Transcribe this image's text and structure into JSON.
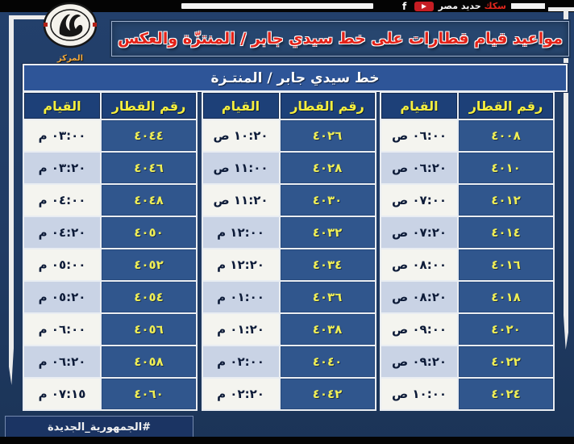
{
  "topbar": {
    "brand_red": "سكك",
    "brand_white": "حديد مصر",
    "icons": [
      "facebook-icon",
      "youtube-icon"
    ]
  },
  "logo": {
    "label": "المركز الإعلامي"
  },
  "title": "مواعيد قيام قطارات على خط سيدي جابر / المنتزّة والعكس",
  "subtitle": "خط سيدي جابر / المنتـزة",
  "hashtag": "#الجمهورية_الجديدة",
  "colors": {
    "page_bg": "#203b64",
    "strip": "#040404",
    "title_red": "#e42117",
    "subtitle_blue": "#2e5598",
    "header_blue": "#1d4078",
    "train_cell_blue": "#30568d",
    "yellow_text": "#f5ee3e",
    "row_light": "#f4f4ef",
    "row_alt": "#c9d3e5",
    "youtube_red": "#c61d23"
  },
  "table": {
    "col_train": "رقم القطار",
    "col_dep": "القيام",
    "groups": [
      {
        "rows": [
          {
            "train": "٤٠٠٨",
            "dep": "٠٦:٠٠ ص"
          },
          {
            "train": "٤٠١٠",
            "dep": "٠٦:٢٠ ص"
          },
          {
            "train": "٤٠١٢",
            "dep": "٠٧:٠٠ ص"
          },
          {
            "train": "٤٠١٤",
            "dep": "٠٧:٢٠ ص"
          },
          {
            "train": "٤٠١٦",
            "dep": "٠٨:٠٠ ص"
          },
          {
            "train": "٤٠١٨",
            "dep": "٠٨:٢٠ ص"
          },
          {
            "train": "٤٠٢٠",
            "dep": "٠٩:٠٠ ص"
          },
          {
            "train": "٤٠٢٢",
            "dep": "٠٩:٢٠ ص"
          },
          {
            "train": "٤٠٢٤",
            "dep": "١٠:٠٠ ص"
          }
        ]
      },
      {
        "rows": [
          {
            "train": "٤٠٢٦",
            "dep": "١٠:٢٠ ص"
          },
          {
            "train": "٤٠٢٨",
            "dep": "١١:٠٠ ص"
          },
          {
            "train": "٤٠٣٠",
            "dep": "١١:٢٠ ص"
          },
          {
            "train": "٤٠٣٢",
            "dep": "١٢:٠٠ م"
          },
          {
            "train": "٤٠٣٤",
            "dep": "١٢:٢٠ م"
          },
          {
            "train": "٤٠٣٦",
            "dep": "٠١:٠٠ م"
          },
          {
            "train": "٤٠٣٨",
            "dep": "٠١:٢٠ م"
          },
          {
            "train": "٤٠٤٠",
            "dep": "٠٢:٠٠ م"
          },
          {
            "train": "٤٠٤٢",
            "dep": "٠٢:٢٠ م"
          }
        ]
      },
      {
        "rows": [
          {
            "train": "٤٠٤٤",
            "dep": "٠٣:٠٠ م"
          },
          {
            "train": "٤٠٤٦",
            "dep": "٠٣:٢٠ م"
          },
          {
            "train": "٤٠٤٨",
            "dep": "٠٤:٠٠ م"
          },
          {
            "train": "٤٠٥٠",
            "dep": "٠٤:٢٠ م"
          },
          {
            "train": "٤٠٥٢",
            "dep": "٠٥:٠٠ م"
          },
          {
            "train": "٤٠٥٤",
            "dep": "٠٥:٢٠ م"
          },
          {
            "train": "٤٠٥٦",
            "dep": "٠٦:٠٠ م"
          },
          {
            "train": "٤٠٥٨",
            "dep": "٠٦:٢٠ م"
          },
          {
            "train": "٤٠٦٠",
            "dep": "٠٧:١٥ م"
          }
        ]
      }
    ]
  }
}
